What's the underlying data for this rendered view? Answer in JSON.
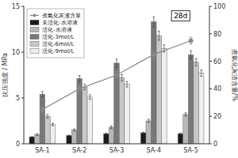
{
  "chart_data": {
    "type": "bar",
    "categories": [
      "SA-1",
      "SA-2",
      "SA-3",
      "SA-4",
      "SA-5"
    ],
    "series": [
      {
        "name": "未活化-水溶液",
        "color": "#1a1a1a",
        "values": [
          0.75,
          0.9,
          1.1,
          1.2,
          1.1
        ],
        "errors": [
          0.05,
          0.05,
          0.06,
          0.07,
          0.06
        ]
      },
      {
        "name": "活化-水溶液",
        "color": "#b8b8b8",
        "values": [
          1.0,
          1.5,
          1.8,
          2.5,
          3.2
        ],
        "errors": [
          0.1,
          0.12,
          0.15,
          0.18,
          0.18
        ]
      },
      {
        "name": "活化-3mol/L",
        "color": "#787878",
        "values": [
          5.4,
          7.1,
          8.8,
          13.3,
          9.7
        ],
        "errors": [
          0.3,
          0.35,
          0.45,
          0.55,
          0.45
        ]
      },
      {
        "name": "活化-6mol/L",
        "color": "#c8c8c8",
        "values": [
          3.0,
          6.2,
          7.2,
          11.8,
          8.9
        ],
        "errors": [
          0.2,
          0.3,
          0.35,
          0.5,
          0.4
        ]
      },
      {
        "name": "活化-9mol/L",
        "color": "#efefef",
        "values": [
          2.1,
          5.1,
          6.5,
          10.4,
          7.7
        ],
        "errors": [
          0.15,
          0.25,
          0.3,
          0.4,
          0.35
        ]
      },
      {
        "name": "煮氣化灰渣含量",
        "type": "line",
        "axis": "y2",
        "color": "#888888",
        "marker": "circle",
        "values": [
          25,
          40,
          50,
          65,
          75
        ],
        "errors": [
          1.5,
          2.0,
          2.5,
          3.0,
          2.5
        ]
      }
    ],
    "ylabel": "抗压强度 / MPa",
    "y2label": "煮氣化灰渣含量/%",
    "ylim": [
      0,
      15
    ],
    "yticks": [
      0,
      5,
      10,
      15
    ],
    "y2lim": [
      0,
      100
    ],
    "y2ticks": [
      0,
      20,
      40,
      60,
      80,
      100
    ],
    "annotation": "28d",
    "legend": "upper left",
    "grid": false
  }
}
